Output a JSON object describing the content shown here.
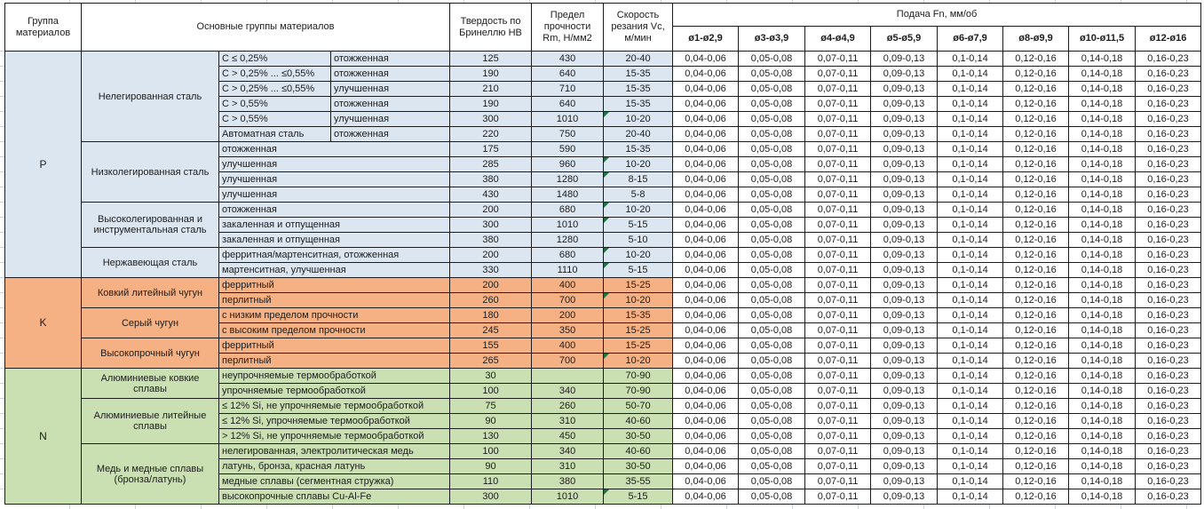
{
  "colors": {
    "group_p_bg": "#DCE6F1",
    "group_k_bg": "#F5B183",
    "group_n_bg": "#CADFB2",
    "error_indicator_green": "#1F7244",
    "cell_border": "#1C1C1C",
    "sheet_gridline": "#CCD4DE"
  },
  "table": {
    "header": {
      "group": "Группа материалов",
      "material_groups": "Основные группы материалов",
      "hardness": "Твердость по Бринеллю HB",
      "strength": "Предел прочности Rm, Н/мм2",
      "speed": "Скорость резания Vc, м/мин",
      "feed": "Подача Fn, мм/об",
      "feed_columns": [
        "ø1-ø2,9",
        "ø3-ø3,9",
        "ø4-ø4,9",
        "ø5-ø5,9",
        "ø6-ø7,9",
        "ø8-ø9,9",
        "ø10-ø11,5",
        "ø12-ø16"
      ]
    },
    "feed_values_all_rows": [
      "0,04-0,06",
      "0,05-0,08",
      "0,07-0,11",
      "0,09-0,13",
      "0,1-0,14",
      "0,12-0,16",
      "0,14-0,18",
      "0,16-0,23"
    ],
    "groups": [
      {
        "letter": "P",
        "color": "#DCE6F1",
        "subgroups": [
          {
            "name": "Нелегированная сталь",
            "rows": [
              {
                "spec": "C ≤ 0,25%",
                "condition": "отожженная",
                "hb": "125",
                "rm": "430",
                "vc": "20-40",
                "indicator": false
              },
              {
                "spec": "C > 0,25% ... ≤0,55%",
                "condition": "отожженная",
                "hb": "190",
                "rm": "640",
                "vc": "15-35",
                "indicator": false
              },
              {
                "spec": "C > 0,25% ... ≤0,55%",
                "condition": "улучшенная",
                "hb": "210",
                "rm": "710",
                "vc": "15-35",
                "indicator": false
              },
              {
                "spec": "C > 0,55%",
                "condition": "отожженная",
                "hb": "190",
                "rm": "640",
                "vc": "15-35",
                "indicator": false
              },
              {
                "spec": "C > 0,55%",
                "condition": "улучшенная",
                "hb": "300",
                "rm": "1010",
                "vc": "10-20",
                "indicator": true
              },
              {
                "spec": "Автоматная сталь",
                "condition": "отожженная",
                "hb": "220",
                "rm": "750",
                "vc": "20-40",
                "indicator": false
              }
            ]
          },
          {
            "name": "Низколегированная сталь",
            "rows": [
              {
                "spec": "отожженная",
                "condition": null,
                "hb": "175",
                "rm": "590",
                "vc": "15-35",
                "indicator": false
              },
              {
                "spec": "улучшенная",
                "condition": null,
                "hb": "285",
                "rm": "960",
                "vc": "10-20",
                "indicator": true
              },
              {
                "spec": "улучшенная",
                "condition": null,
                "hb": "380",
                "rm": "1280",
                "vc": "8-15",
                "indicator": true
              },
              {
                "spec": "улучшенная",
                "condition": null,
                "hb": "430",
                "rm": "1480",
                "vc": "5-8",
                "indicator": false
              }
            ]
          },
          {
            "name": "Высоколегированная и инструментальная сталь",
            "rows": [
              {
                "spec": "отожженная",
                "condition": null,
                "hb": "200",
                "rm": "680",
                "vc": "10-20",
                "indicator": true
              },
              {
                "spec": "закаленная и отпущенная",
                "condition": null,
                "hb": "300",
                "rm": "1010",
                "vc": "5-15",
                "indicator": true
              },
              {
                "spec": "закаленная и отпущенная",
                "condition": null,
                "hb": "380",
                "rm": "1280",
                "vc": "5-10",
                "indicator": false
              }
            ]
          },
          {
            "name": "Нержавеющая сталь",
            "rows": [
              {
                "spec": "ферритная/мартенситная, отожженная",
                "condition": null,
                "hb": "200",
                "rm": "680",
                "vc": "10-20",
                "indicator": true
              },
              {
                "spec": "мартенситная, улучшенная",
                "condition": null,
                "hb": "330",
                "rm": "1110",
                "vc": "5-15",
                "indicator": true
              }
            ]
          }
        ]
      },
      {
        "letter": "K",
        "color": "#F5B183",
        "subgroups": [
          {
            "name": "Ковкий литейный чугун",
            "rows": [
              {
                "spec": "ферритный",
                "condition": null,
                "hb": "200",
                "rm": "400",
                "vc": "15-25",
                "indicator": false
              },
              {
                "spec": "перлитный",
                "condition": null,
                "hb": "260",
                "rm": "700",
                "vc": "10-20",
                "indicator": true
              }
            ]
          },
          {
            "name": "Серый чугун",
            "rows": [
              {
                "spec": "с низким пределом прочности",
                "condition": null,
                "hb": "180",
                "rm": "200",
                "vc": "15-35",
                "indicator": false
              },
              {
                "spec": "с высоким пределом прочности",
                "condition": null,
                "hb": "245",
                "rm": "350",
                "vc": "15-25",
                "indicator": false
              }
            ]
          },
          {
            "name": "Высокопрочный чугун",
            "rows": [
              {
                "spec": "ферритный",
                "condition": null,
                "hb": "155",
                "rm": "400",
                "vc": "15-25",
                "indicator": false
              },
              {
                "spec": "перлитный",
                "condition": null,
                "hb": "265",
                "rm": "700",
                "vc": "10-20",
                "indicator": true
              }
            ]
          }
        ]
      },
      {
        "letter": "N",
        "color": "#CADFB2",
        "subgroups": [
          {
            "name": "Алюминиевые ковкие сплавы",
            "rows": [
              {
                "spec": "неупрочняемые термообработкой",
                "condition": null,
                "hb": "30",
                "rm": "",
                "vc": "70-90",
                "indicator": false
              },
              {
                "spec": "упрочняемые термообработкой",
                "condition": null,
                "hb": "100",
                "rm": "340",
                "vc": "70-90",
                "indicator": false
              }
            ]
          },
          {
            "name": "Алюминиевые литейные сплавы",
            "rows": [
              {
                "spec": "≤ 12% Si, не упрочняемые термообработкой",
                "condition": null,
                "hb": "75",
                "rm": "260",
                "vc": "50-70",
                "indicator": false
              },
              {
                "spec": "≤ 12% Si, упрочняемые термообработкой",
                "condition": null,
                "hb": "90",
                "rm": "310",
                "vc": "40-60",
                "indicator": false
              },
              {
                "spec": "> 12% Si, не упрочняемые термообработкой",
                "condition": null,
                "hb": "130",
                "rm": "450",
                "vc": "30-50",
                "indicator": false
              }
            ]
          },
          {
            "name": "Медь и медные сплавы (бронза/латунь)",
            "rows": [
              {
                "spec": "нелегированная, электролитическая медь",
                "condition": null,
                "hb": "100",
                "rm": "340",
                "vc": "40-60",
                "indicator": false
              },
              {
                "spec": "латунь, бронза, красная латунь",
                "condition": null,
                "hb": "90",
                "rm": "310",
                "vc": "30-50",
                "indicator": false
              },
              {
                "spec": "медные сплавы (сегментная стружка)",
                "condition": null,
                "hb": "110",
                "rm": "380",
                "vc": "35-55",
                "indicator": false
              },
              {
                "spec": "высокопрочные сплавы Cu-Al-Fe",
                "condition": null,
                "hb": "300",
                "rm": "1010",
                "vc": "5-15",
                "indicator": true
              }
            ]
          }
        ]
      }
    ]
  }
}
